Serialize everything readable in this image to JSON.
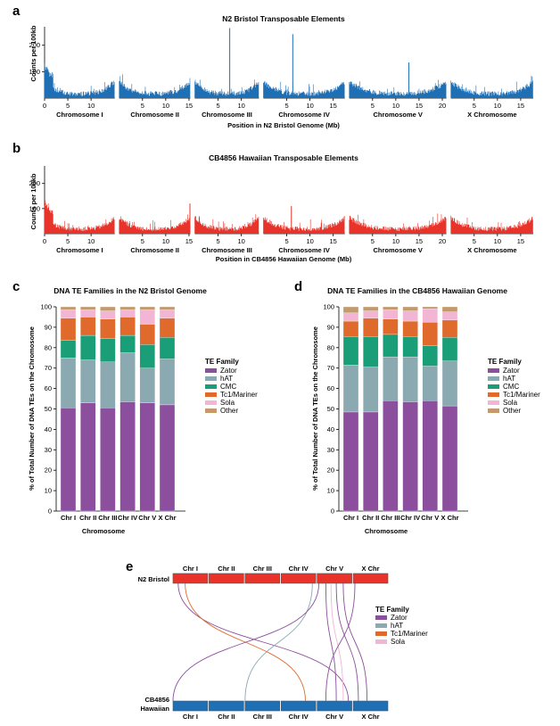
{
  "chart_data": [
    {
      "panel": "a",
      "type": "bar",
      "title": "N2 Bristol Transposable Elements",
      "xlabel": "Position in N2 Bristol Genome (Mb)",
      "ylabel": "Counts per 100kb",
      "yticks": [
        100,
        200
      ],
      "ylim": [
        0,
        270
      ],
      "color": "#1f6fb5",
      "chromosomes": [
        {
          "name": "Chromosome I",
          "length_mb": 15.1,
          "ticks": [
            0,
            5,
            10
          ]
        },
        {
          "name": "Chromosome II",
          "length_mb": 15.3,
          "ticks": [
            5,
            10,
            15
          ]
        },
        {
          "name": "Chromosome III",
          "length_mb": 13.8,
          "ticks": [
            5,
            10
          ]
        },
        {
          "name": "Chromosome IV",
          "length_mb": 17.5,
          "ticks": [
            5,
            10,
            15
          ]
        },
        {
          "name": "Chromosome V",
          "length_mb": 20.9,
          "ticks": [
            5,
            10,
            15,
            20
          ]
        },
        {
          "name": "X Chromosome",
          "length_mb": 17.7,
          "ticks": [
            5,
            10,
            15
          ]
        }
      ],
      "peaks": [
        {
          "chromosome": "Chromosome III",
          "position_mb": 7.5,
          "count": 265
        },
        {
          "chromosome": "Chromosome IV",
          "position_mb": 6.3,
          "count": 242
        },
        {
          "chromosome": "Chromosome V",
          "position_mb": 12.8,
          "count": 135
        }
      ]
    },
    {
      "panel": "b",
      "type": "bar",
      "title": "CB4856 Hawaiian Transposable Elements",
      "xlabel": "Position in CB4856 Hawaiian Genome (Mb)",
      "ylabel": "Counts per 100kb",
      "yticks": [
        100,
        200
      ],
      "ylim": [
        0,
        270
      ],
      "color": "#e8332a",
      "chromosomes": [
        {
          "name": "Chromosome I",
          "length_mb": 15.1,
          "ticks": [
            0,
            5,
            10
          ]
        },
        {
          "name": "Chromosome II",
          "length_mb": 15.3,
          "ticks": [
            5,
            10,
            15
          ]
        },
        {
          "name": "Chromosome III",
          "length_mb": 13.8,
          "ticks": [
            5,
            10
          ]
        },
        {
          "name": "Chromosome IV",
          "length_mb": 17.5,
          "ticks": [
            5,
            10,
            15
          ]
        },
        {
          "name": "Chromosome V",
          "length_mb": 20.9,
          "ticks": [
            5,
            10,
            15,
            20
          ]
        },
        {
          "name": "X Chromosome",
          "length_mb": 17.7,
          "ticks": [
            5,
            10,
            15
          ]
        }
      ],
      "peaks": [
        {
          "chromosome": "Chromosome II",
          "position_mb": 15.2,
          "count": 120
        },
        {
          "chromosome": "Chromosome IV",
          "position_mb": 6.0,
          "count": 110
        }
      ]
    },
    {
      "panel": "c",
      "type": "bar",
      "stacked": true,
      "title": "DNA TE Families in the N2 Bristol Genome",
      "xlabel": "Chromosome",
      "ylabel": "% of Total Number of DNA TEs on the Chromosome",
      "ylim": [
        0,
        100
      ],
      "yticks": [
        0,
        10,
        20,
        30,
        40,
        50,
        60,
        70,
        80,
        90,
        100
      ],
      "categories": [
        "Chr I",
        "Chr II",
        "Chr III",
        "Chr IV",
        "Chr V",
        "X Chr"
      ],
      "legend_title": "TE Family",
      "series": [
        {
          "name": "Zator",
          "color": "#8b4f9e",
          "values": [
            50.5,
            53,
            50.5,
            53.5,
            53,
            52
          ]
        },
        {
          "name": "hAT",
          "color": "#8aa9b1",
          "values": [
            24.5,
            21,
            22.5,
            24,
            17,
            22.5
          ]
        },
        {
          "name": "CMC",
          "color": "#1a9e77",
          "values": [
            8.5,
            12,
            11.5,
            8.5,
            11.5,
            10.5
          ]
        },
        {
          "name": "Tc1/Mariner",
          "color": "#e06a2b",
          "values": [
            11,
            9,
            9.5,
            9,
            10,
            9.5
          ]
        },
        {
          "name": "Sola",
          "color": "#f2b5d4",
          "values": [
            4,
            3.5,
            4,
            3.5,
            7,
            4
          ]
        },
        {
          "name": "Other",
          "color": "#c49a6c",
          "values": [
            1.5,
            1.5,
            2,
            1.5,
            1.5,
            1.5
          ]
        }
      ]
    },
    {
      "panel": "d",
      "type": "bar",
      "stacked": true,
      "title": "DNA TE Families in the CB4856 Hawaiian Genome",
      "xlabel": "Chromosome",
      "ylabel": "% of Total Number of DNA TEs on the Chromosome",
      "ylim": [
        0,
        100
      ],
      "yticks": [
        0,
        10,
        20,
        30,
        40,
        50,
        60,
        70,
        80,
        90,
        100
      ],
      "categories": [
        "Chr I",
        "Chr II",
        "Chr III",
        "Chr IV",
        "Chr V",
        "X Chr"
      ],
      "legend_title": "TE Family",
      "series": [
        {
          "name": "Zator",
          "color": "#8b4f9e",
          "values": [
            48.5,
            48.5,
            54,
            53.5,
            54,
            51.5
          ]
        },
        {
          "name": "hAT",
          "color": "#8aa9b1",
          "values": [
            23,
            22,
            21.5,
            22,
            17,
            22
          ]
        },
        {
          "name": "CMC",
          "color": "#1a9e77",
          "values": [
            14,
            15,
            11,
            10,
            10,
            11.5
          ]
        },
        {
          "name": "Tc1/Mariner",
          "color": "#e06a2b",
          "values": [
            7.5,
            9,
            7.5,
            7.5,
            11.5,
            8.5
          ]
        },
        {
          "name": "Sola",
          "color": "#f2b5d4",
          "values": [
            4,
            3.5,
            4.5,
            5,
            6.5,
            4
          ]
        },
        {
          "name": "Other",
          "color": "#c49a6c",
          "values": [
            3,
            2,
            1.5,
            2,
            1,
            2.5
          ]
        }
      ]
    },
    {
      "panel": "e",
      "type": "diagram",
      "top_genome": "N2 Bristol",
      "bottom_genome_lines": [
        "CB4856",
        "Hawaiian"
      ],
      "top_color": "#e8332a",
      "bottom_color": "#1f6fb5",
      "chromosomes": [
        "Chr I",
        "Chr II",
        "Chr III",
        "Chr IV",
        "Chr V",
        "X Chr"
      ],
      "legend_title": "TE Family",
      "families": [
        {
          "name": "Zator",
          "color": "#8b4f9e"
        },
        {
          "name": "hAT",
          "color": "#8aa9b1"
        },
        {
          "name": "Tc1/Mariner",
          "color": "#e06a2b"
        },
        {
          "name": "Sola",
          "color": "#f2b5d4"
        }
      ],
      "links": [
        {
          "family": "Zator",
          "from": [
            "Chr I",
            0.15
          ],
          "to": [
            "Chr V",
            0.9
          ]
        },
        {
          "family": "Tc1/Mariner",
          "from": [
            "Chr I",
            0.35
          ],
          "to": [
            "Chr IV",
            0.7
          ]
        },
        {
          "family": "hAT",
          "from": [
            "Chr IV",
            0.9
          ],
          "to": [
            "Chr III",
            0.0
          ]
        },
        {
          "family": "Zator",
          "from": [
            "Chr V",
            0.05
          ],
          "to": [
            "Chr I",
            0.0
          ]
        },
        {
          "family": "Zator",
          "from": [
            "Chr V",
            0.25
          ],
          "to": [
            "Chr V",
            0.55
          ]
        },
        {
          "family": "Sola",
          "from": [
            "Chr V",
            0.4
          ],
          "to": [
            "Chr V",
            0.75
          ]
        },
        {
          "family": "Zator",
          "from": [
            "Chr V",
            0.55
          ],
          "to": [
            "X Chr",
            0.15
          ]
        },
        {
          "family": "Zator",
          "from": [
            "Chr V",
            0.75
          ],
          "to": [
            "X Chr",
            0.4
          ]
        },
        {
          "family": "Zator",
          "from": [
            "X Chr",
            0.05
          ],
          "to": [
            "Chr V",
            0.25
          ]
        }
      ]
    }
  ]
}
